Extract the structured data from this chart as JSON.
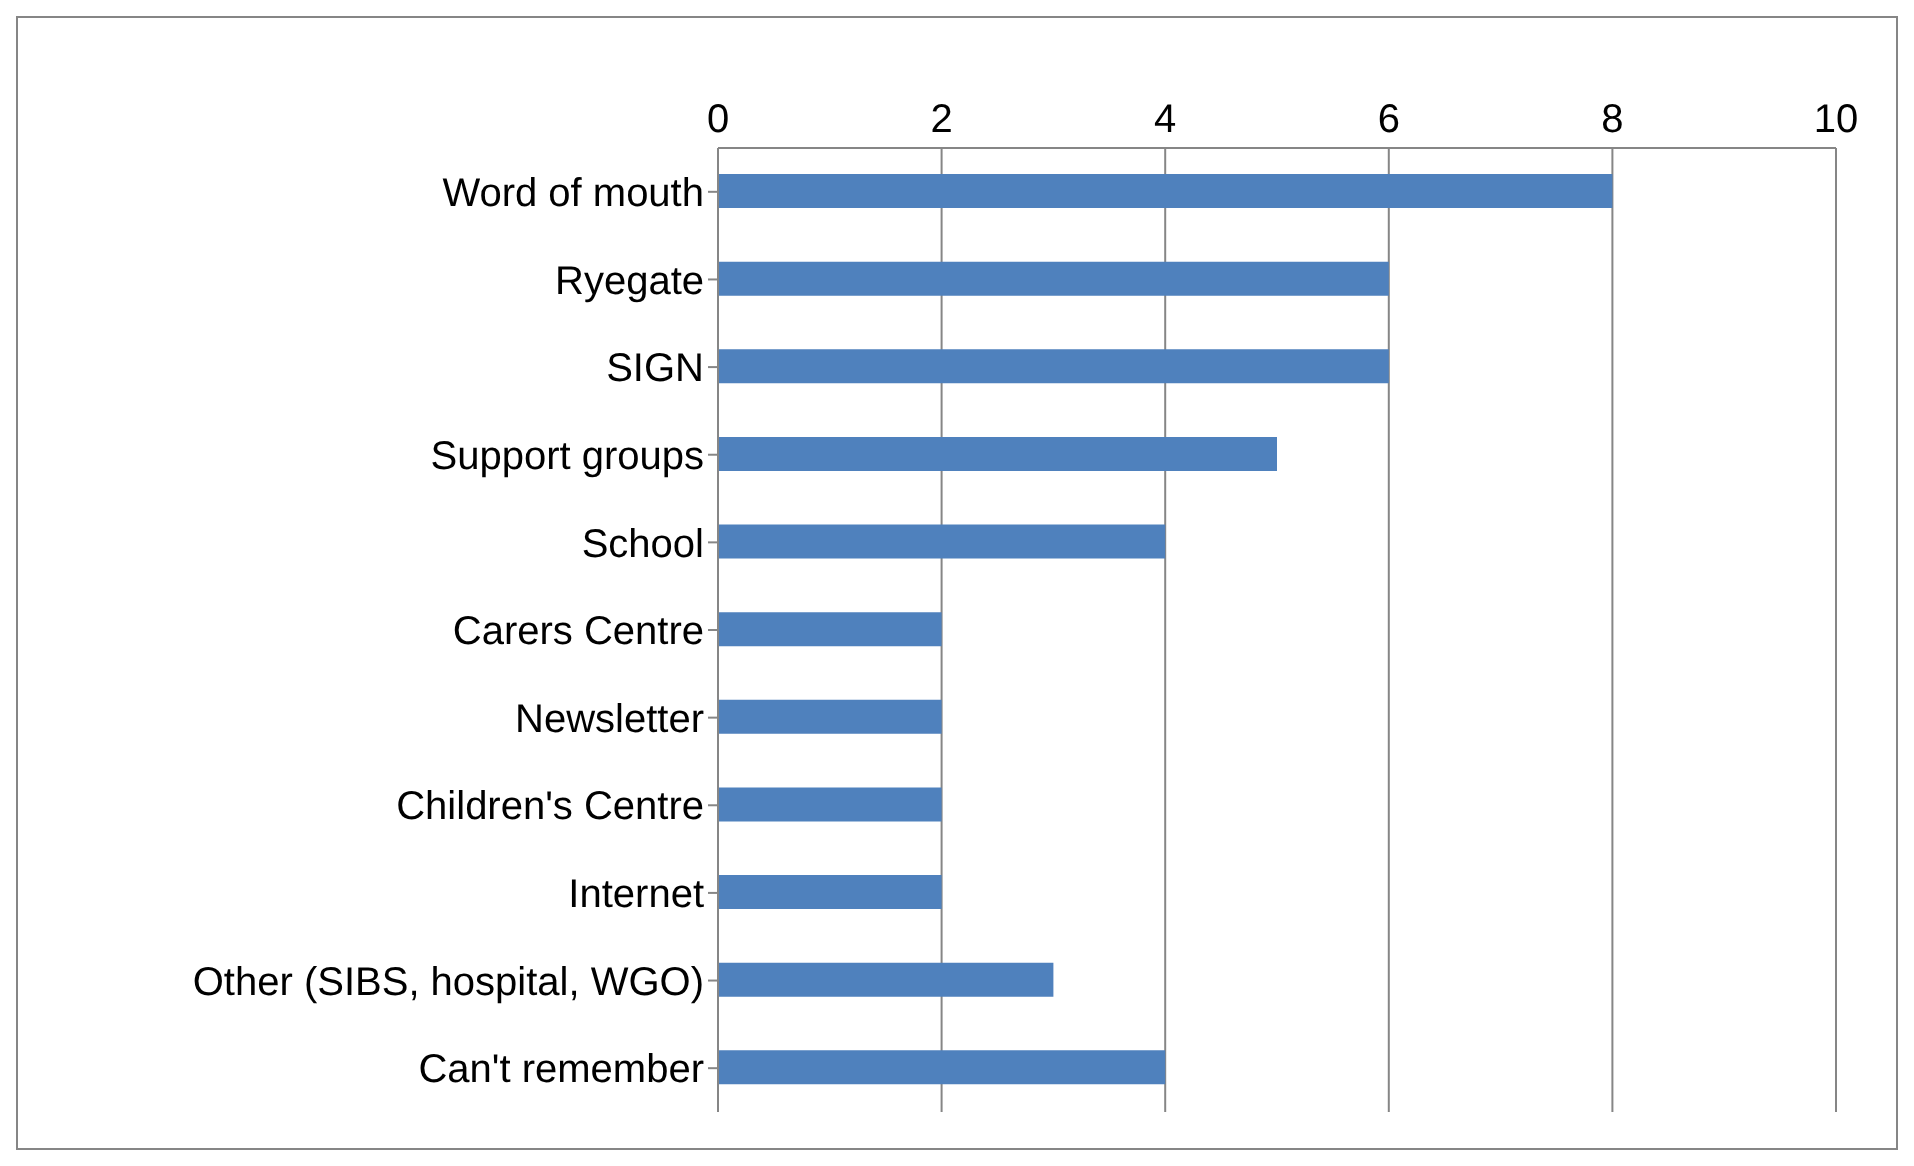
{
  "chart_data": {
    "type": "bar",
    "orientation": "horizontal",
    "categories": [
      "Word of mouth",
      "Ryegate",
      "SIGN",
      "Support groups",
      "School",
      "Carers Centre",
      "Newsletter",
      "Children's Centre",
      "Internet",
      "Other (SIBS, hospital, WGO)",
      "Can't remember"
    ],
    "values": [
      8,
      6,
      6,
      5,
      4,
      2,
      2,
      2,
      2,
      3,
      4
    ],
    "color": "#4f81bd",
    "xlim": [
      0,
      10
    ],
    "xticks": [
      0,
      2,
      4,
      6,
      8,
      10
    ],
    "grid": "x",
    "legend": false
  }
}
